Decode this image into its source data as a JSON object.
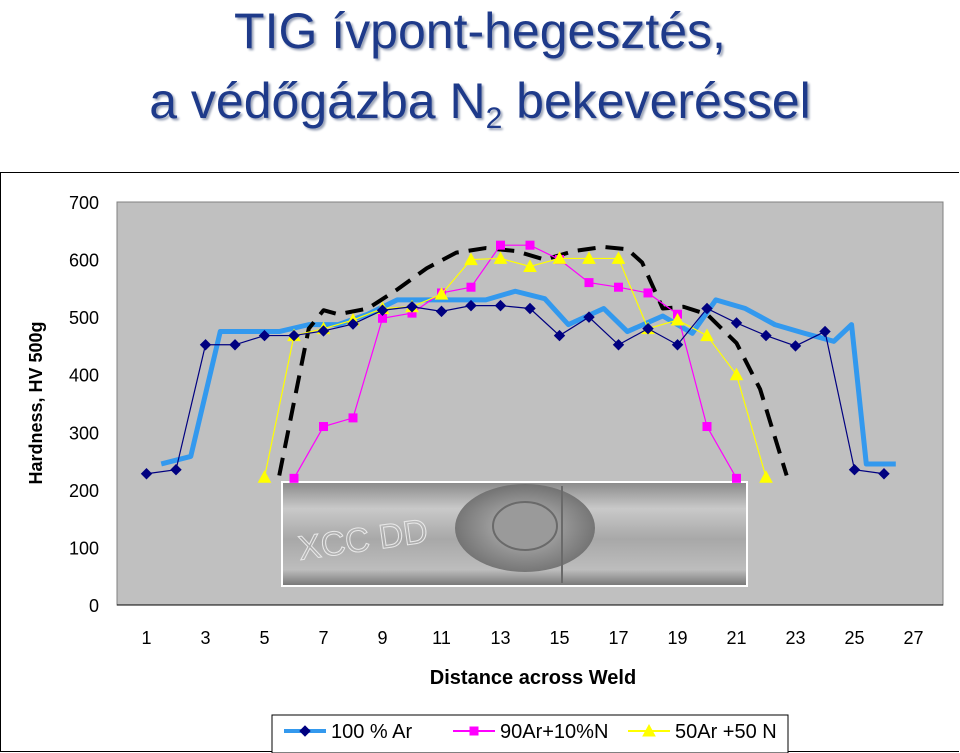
{
  "title": {
    "line1": "TIG ívpont-hegesztés,",
    "line2_main": "a védőgázba N",
    "line2_sub": "2",
    "line2_end": " bekeveréssel"
  },
  "chart_data": {
    "type": "line",
    "ylabel": "Hardness, HV 500g",
    "xlabel": "Distance across Weld",
    "ylim": [
      0,
      700
    ],
    "yticks": [
      0,
      100,
      200,
      300,
      400,
      500,
      600,
      700
    ],
    "xlim": [
      0,
      28
    ],
    "xticks": [
      1,
      3,
      5,
      7,
      9,
      11,
      13,
      15,
      17,
      19,
      21,
      23,
      25,
      27
    ],
    "grid": false,
    "legend_position": "bottom",
    "series": [
      {
        "name": "100 % Ar",
        "color": "#000080",
        "marker": "diamond",
        "x": [
          1,
          2,
          3,
          4,
          5,
          6,
          7,
          8,
          9,
          10,
          11,
          12,
          13,
          14,
          15,
          16,
          17,
          18,
          19,
          20,
          21,
          22,
          23,
          24,
          25,
          26
        ],
        "y": [
          228,
          235,
          452,
          452,
          468,
          468,
          476,
          488,
          512,
          518,
          510,
          520,
          520,
          515,
          468,
          500,
          452,
          480,
          452,
          515,
          490,
          468,
          450,
          475,
          235,
          228
        ]
      },
      {
        "name": "90Ar+10%N",
        "color": "#ff00ff",
        "marker": "square",
        "x": [
          6,
          7,
          8,
          9,
          10,
          11,
          12,
          13,
          14,
          15,
          16,
          17,
          18,
          19,
          20,
          21
        ],
        "y": [
          220,
          310,
          325,
          498,
          507,
          542,
          552,
          625,
          625,
          600,
          560,
          552,
          542,
          505,
          310,
          220
        ]
      },
      {
        "name": "50Ar +50 N",
        "color": "#ffff00",
        "marker": "triangle",
        "x": [
          5,
          6,
          7,
          8,
          9,
          10,
          11,
          12,
          13,
          14,
          15,
          16,
          17,
          18,
          19,
          20,
          21,
          22
        ],
        "y": [
          222,
          468,
          480,
          495,
          515,
          518,
          540,
          600,
          602,
          588,
          602,
          602,
          602,
          480,
          495,
          468,
          400,
          222
        ]
      }
    ],
    "trend_lines": [
      {
        "color": "#3399ee",
        "style": "solid",
        "x": [
          1.5,
          2.5,
          3.5,
          4.5,
          5.5,
          6.5,
          7.5,
          8.5,
          9.5,
          10.5,
          11.5,
          12.5,
          13.5,
          14.5,
          15.3,
          16.5,
          17.3,
          18.5,
          19.5,
          20.3,
          21.3,
          22.3,
          23.3,
          24.3,
          24.9,
          25.4,
          26.4
        ],
        "y": [
          245,
          258,
          475,
          475,
          475,
          487,
          487,
          505,
          530,
          530,
          530,
          530,
          545,
          532,
          487,
          515,
          475,
          502,
          472,
          530,
          515,
          487,
          472,
          458,
          487,
          245,
          245
        ]
      },
      {
        "color": "#000000",
        "style": "dashed",
        "x": [
          5.5,
          6.5,
          7,
          7.5,
          8.5,
          9.5,
          10.5,
          11.5,
          12.5,
          13.5,
          14.5,
          15.5,
          16.5,
          17.3,
          17.8,
          18.5,
          19.2,
          20,
          21,
          21.8,
          22.7
        ],
        "y": [
          225,
          480,
          512,
          505,
          515,
          548,
          585,
          612,
          620,
          615,
          600,
          615,
          622,
          618,
          595,
          515,
          518,
          505,
          455,
          375,
          225
        ]
      }
    ],
    "inset_photo": {
      "label": "XCC DD"
    }
  }
}
